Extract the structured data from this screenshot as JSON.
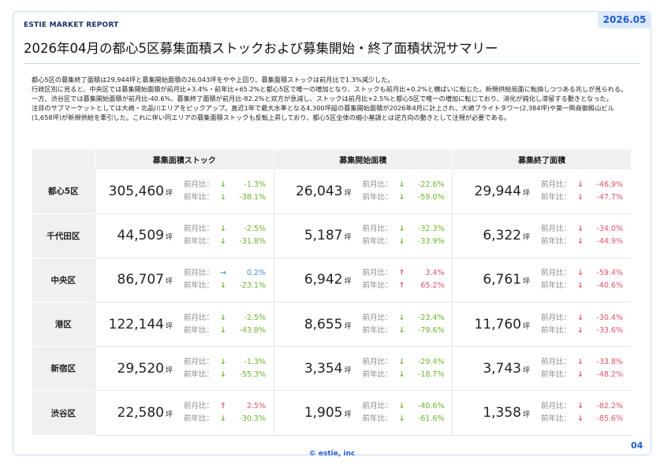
{
  "header": {
    "brand": "ESTIE MARKET REPORT",
    "date": "2026.05",
    "title": "2026年04月の都心5区募集面積ストックおよび募集開始・終了面積状況サマリー"
  },
  "summary": [
    "都心5区の募集終了面積は29,944坪と募集開始面積の26,043坪をやや上回り、募集面積ストックは前月比で1.3%減少した。",
    "行政区別に見ると、中央区では募集開始面積が前月比+3.4%・前年比+65.2%と都心5区で唯一の増加となり、ストックも前月比+0.2%と横ばいに転じた。新規供給局面に転換しつつある兆しが見られる。一方、渋谷区では募集開始面積が前月比-40.6%、募集終了面積が前月比-82.2%と双方が急減し、ストックは前月比+2.5%と都心5区で唯一の増加に転じており、消化が鈍化し滞留する動きとなった。",
    "注目のサブマーケットとしては大崎・北品川エリアをピックアップ。直近1年で最大水準となる4,300坪超の募集開始面積が2026年4月に計上され、大崎ブライトタワー(2,384坪)や第一興商御殿山ビル(1,658坪)が新規供給を牽引した。これに伴い同エリアの募集面積ストックも反転上昇しており、都心5区全体の縮小基調とは逆方向の動きとして注視が必要である。"
  ],
  "table": {
    "columns": [
      "募集面積ストック",
      "募集開始面積",
      "募集終了面積"
    ],
    "unit": "坪",
    "mom_label": "前月比：",
    "yoy_label": "前年比：",
    "rows": [
      {
        "area": "都心5区",
        "cells": [
          {
            "value": "305,460",
            "mom": "-1.3%",
            "mom_trend": "down",
            "yoy": "-38.1%",
            "yoy_trend": "down"
          },
          {
            "value": "26,043",
            "mom": "-22.6%",
            "mom_trend": "down",
            "yoy": "-59.0%",
            "yoy_trend": "down"
          },
          {
            "value": "29,944",
            "mom": "-46.9%",
            "mom_trend": "down",
            "yoy": "-47.7%",
            "yoy_trend": "down"
          }
        ]
      },
      {
        "area": "千代田区",
        "cells": [
          {
            "value": "44,509",
            "mom": "-2.5%",
            "mom_trend": "down",
            "yoy": "-31.8%",
            "yoy_trend": "down"
          },
          {
            "value": "5,187",
            "mom": "-32.3%",
            "mom_trend": "down",
            "yoy": "-33.9%",
            "yoy_trend": "down"
          },
          {
            "value": "6,322",
            "mom": "-34.0%",
            "mom_trend": "down",
            "yoy": "-44.9%",
            "yoy_trend": "down"
          }
        ]
      },
      {
        "area": "中央区",
        "cells": [
          {
            "value": "86,707",
            "mom": "0.2%",
            "mom_trend": "flat",
            "yoy": "-23.1%",
            "yoy_trend": "down"
          },
          {
            "value": "6,942",
            "mom": "3.4%",
            "mom_trend": "up",
            "yoy": "65.2%",
            "yoy_trend": "up"
          },
          {
            "value": "6,761",
            "mom": "-59.4%",
            "mom_trend": "down",
            "yoy": "-40.6%",
            "yoy_trend": "down"
          }
        ]
      },
      {
        "area": "港区",
        "cells": [
          {
            "value": "122,144",
            "mom": "-2.5%",
            "mom_trend": "down",
            "yoy": "-43.8%",
            "yoy_trend": "down"
          },
          {
            "value": "8,655",
            "mom": "-23.4%",
            "mom_trend": "down",
            "yoy": "-79.6%",
            "yoy_trend": "down"
          },
          {
            "value": "11,760",
            "mom": "-30.4%",
            "mom_trend": "down",
            "yoy": "-33.6%",
            "yoy_trend": "down"
          }
        ]
      },
      {
        "area": "新宿区",
        "cells": [
          {
            "value": "29,520",
            "mom": "-1.3%",
            "mom_trend": "down",
            "yoy": "-55.3%",
            "yoy_trend": "down"
          },
          {
            "value": "3,354",
            "mom": "-29.4%",
            "mom_trend": "down",
            "yoy": "-18.7%",
            "yoy_trend": "down"
          },
          {
            "value": "3,743",
            "mom": "-33.8%",
            "mom_trend": "down",
            "yoy": "-48.2%",
            "yoy_trend": "down"
          }
        ]
      },
      {
        "area": "渋谷区",
        "cells": [
          {
            "value": "22,580",
            "mom": "2.5%",
            "mom_trend": "up",
            "yoy": "-30.3%",
            "yoy_trend": "down"
          },
          {
            "value": "1,905",
            "mom": "-40.6%",
            "mom_trend": "down",
            "yoy": "-61.6%",
            "yoy_trend": "down"
          },
          {
            "value": "1,358",
            "mom": "-82.2%",
            "mom_trend": "down",
            "yoy": "-85.6%",
            "yoy_trend": "down"
          }
        ]
      }
    ]
  },
  "footer": {
    "copyright": "© estie, inc",
    "page": "04"
  }
}
